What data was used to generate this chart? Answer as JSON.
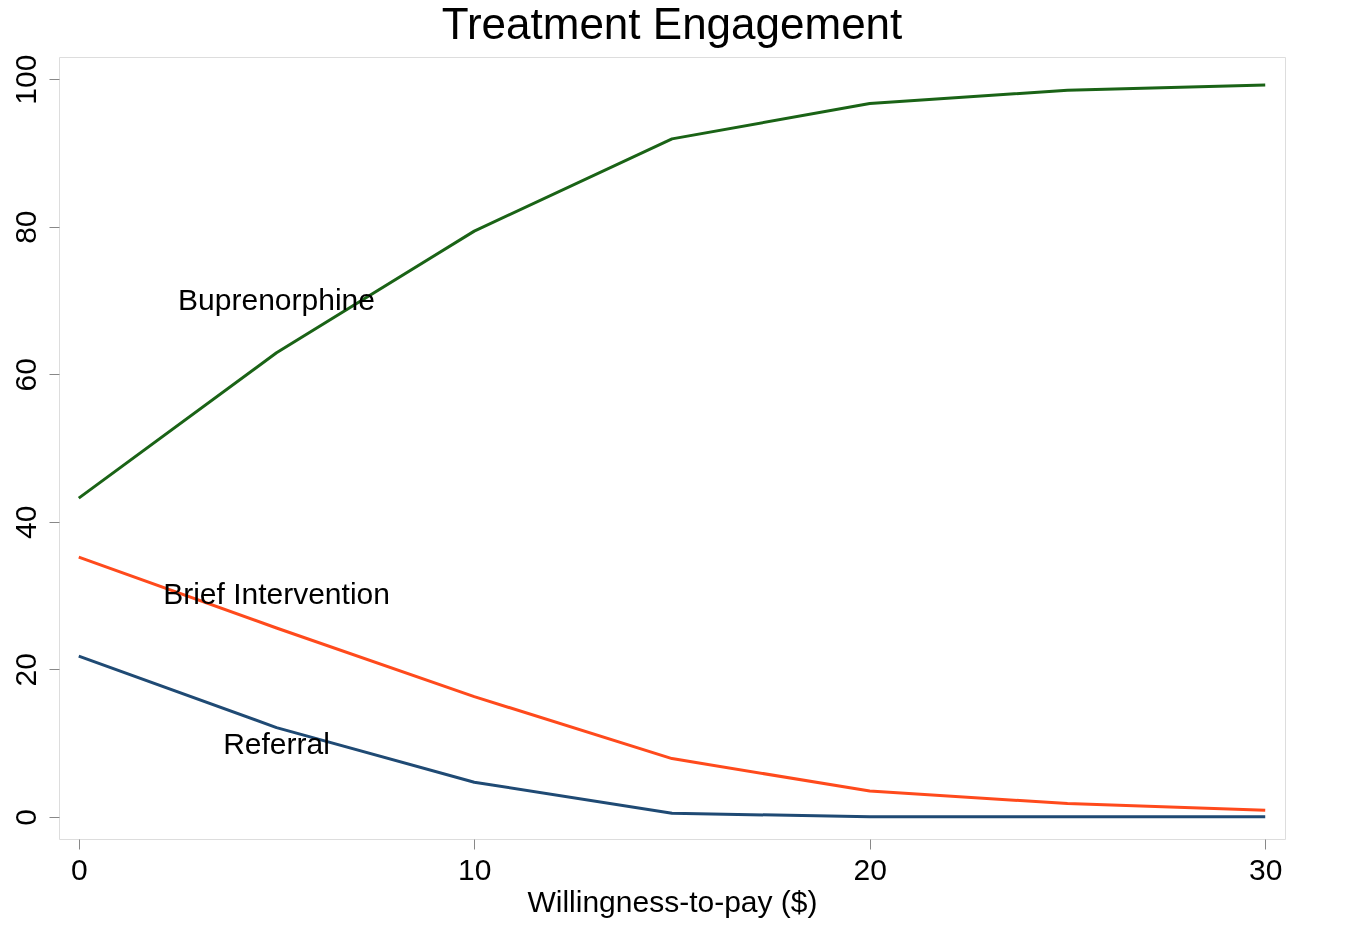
{
  "chart_data": {
    "type": "line",
    "title": "Treatment Engagement",
    "xlabel": "Willingness-to-pay ($)",
    "x": [
      0,
      5,
      10,
      15,
      20,
      25,
      30
    ],
    "series": [
      {
        "name": "Buprenorphine",
        "color": "#1a6316",
        "values": [
          43.2,
          62.9,
          79.4,
          91.9,
          96.7,
          98.5,
          99.2
        ]
      },
      {
        "name": "Brief Intervention",
        "color": "#ff4a1c",
        "values": [
          35.2,
          25.6,
          16.3,
          7.9,
          3.5,
          1.8,
          0.9
        ]
      },
      {
        "name": "Referral",
        "color": "#1f4a74",
        "values": [
          21.8,
          12.1,
          4.7,
          0.5,
          0,
          0,
          0
        ]
      }
    ],
    "xlim": [
      -0.5,
      30.5
    ],
    "ylim": [
      -3,
      103
    ],
    "xticks": [
      0,
      10,
      20,
      30
    ],
    "yticks": [
      0,
      20,
      40,
      60,
      80,
      100
    ],
    "grid": false,
    "legend": false,
    "marker": "none",
    "line_style": "solid"
  }
}
